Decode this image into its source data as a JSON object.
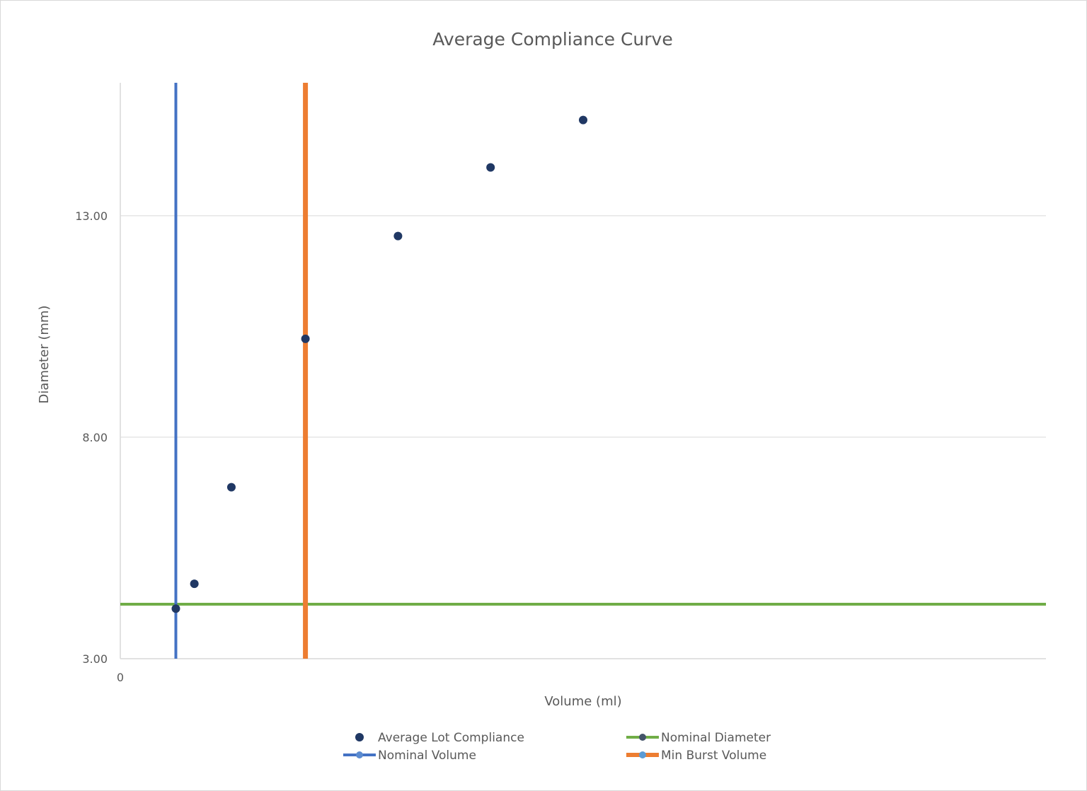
{
  "chart_data": {
    "type": "scatter",
    "title": "Average Compliance Curve",
    "xlabel": "Volume (ml)",
    "ylabel": "Diameter (mm)",
    "xlim": [
      0,
      10
    ],
    "ylim": [
      3,
      16
    ],
    "x_tick_labels": [
      "0"
    ],
    "y_ticks": [
      3,
      8,
      13
    ],
    "y_tick_labels": [
      "3.00",
      "8.00",
      "13.00"
    ],
    "grid": "horizontal",
    "legend_placement": "bottom",
    "series": [
      {
        "name": "Average Lot Compliance",
        "kind": "points",
        "color": "#203864",
        "x": [
          0.6,
          0.8,
          1.2,
          2.0,
          3.0,
          4.0,
          5.0
        ],
        "y": [
          4.13,
          4.69,
          6.87,
          10.22,
          12.54,
          14.09,
          15.16
        ]
      },
      {
        "name": "Nominal Diameter",
        "kind": "horizontal-line",
        "color": "#70ad47",
        "marker_color": "#44546a",
        "y": 4.23
      },
      {
        "name": "Nominal Volume",
        "kind": "vertical-line",
        "color": "#4472c4",
        "marker_color": "#5b8bd0",
        "x": 0.6
      },
      {
        "name": "Min Burst Volume",
        "kind": "vertical-line",
        "color": "#ed7d31",
        "marker_color": "#5b9bd5",
        "x": 2.0
      }
    ]
  }
}
